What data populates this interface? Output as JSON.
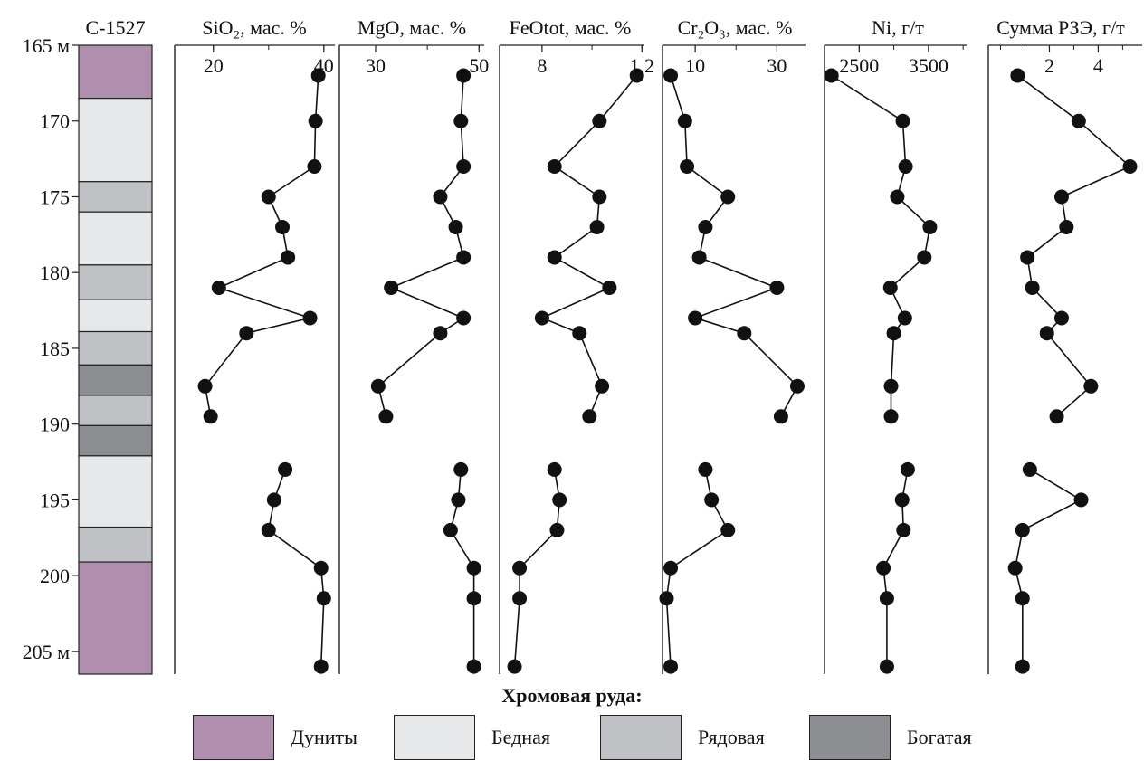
{
  "chart_data": {
    "type": "line",
    "well": "С-1527",
    "depth_top_label": "165 м",
    "depth_bottom_label": "205 м",
    "depth_ticks": [
      "165 м",
      "170",
      "175",
      "180",
      "185",
      "190",
      "195",
      "200",
      "205 м"
    ],
    "depth_range": [
      165,
      206.5
    ],
    "depth": [
      167,
      170,
      173,
      175,
      177,
      179,
      181,
      183,
      184,
      187.5,
      189.5,
      193,
      195,
      197,
      199.5,
      201.5,
      206
    ],
    "lithology": [
      {
        "top": 165,
        "bottom": 168.5,
        "type": "dunite"
      },
      {
        "top": 168.5,
        "bottom": 174,
        "type": "poor"
      },
      {
        "top": 174,
        "bottom": 176,
        "type": "ordinary"
      },
      {
        "top": 176,
        "bottom": 179.5,
        "type": "poor"
      },
      {
        "top": 179.5,
        "bottom": 181.8,
        "type": "ordinary"
      },
      {
        "top": 181.8,
        "bottom": 183.9,
        "type": "poor"
      },
      {
        "top": 183.9,
        "bottom": 186.1,
        "type": "ordinary"
      },
      {
        "top": 186.1,
        "bottom": 188.1,
        "type": "rich"
      },
      {
        "top": 188.1,
        "bottom": 190.1,
        "type": "ordinary"
      },
      {
        "top": 190.1,
        "bottom": 192.1,
        "type": "rich"
      },
      {
        "top": 192.1,
        "bottom": 196.8,
        "type": "poor"
      },
      {
        "top": 196.8,
        "bottom": 199.1,
        "type": "ordinary"
      },
      {
        "top": 199.1,
        "bottom": 206.5,
        "type": "dunite"
      }
    ],
    "series": [
      {
        "name": "SiO₂, мас. %",
        "xlim": [
          13,
          42
        ],
        "ticks": [
          20,
          40
        ],
        "values": [
          39,
          38.5,
          38.3,
          30,
          32.5,
          33.5,
          21,
          37.5,
          26,
          18.5,
          19.5,
          33,
          31,
          30,
          39.5,
          40,
          39.5
        ]
      },
      {
        "name": "MgO, мас. %",
        "xlim": [
          23,
          51
        ],
        "ticks": [
          30,
          50
        ],
        "values": [
          47,
          46.5,
          47,
          42.5,
          45.5,
          47,
          33,
          47,
          42.5,
          30.5,
          32,
          46.5,
          46,
          44.5,
          49,
          49,
          49
        ]
      },
      {
        "name": "FeOtot, мас. %",
        "xlim": [
          6.3,
          12.1
        ],
        "ticks": [
          8,
          12
        ],
        "values": [
          11.8,
          10.3,
          8.5,
          10.3,
          10.2,
          8.5,
          10.7,
          8,
          9.5,
          10.4,
          9.9,
          8.5,
          8.7,
          8.6,
          7.1,
          7.1,
          6.9
        ],
        "tick_labels": [
          "8",
          "1 2"
        ]
      },
      {
        "name": "Cr₂O₃, мас. %",
        "xlim": [
          2,
          37
        ],
        "ticks": [
          10,
          30
        ],
        "values": [
          4,
          7.5,
          8,
          18,
          12.5,
          11,
          30,
          10,
          22,
          35,
          31,
          12.5,
          14,
          18,
          4,
          3,
          4
        ]
      },
      {
        "name": "Ni, г/т",
        "xlim": [
          2000,
          4050
        ],
        "ticks": [
          2500,
          3500
        ],
        "values": [
          2100,
          3130,
          3170,
          3050,
          3520,
          3440,
          2950,
          3160,
          3000,
          2960,
          2960,
          3200,
          3120,
          3140,
          2850,
          2900,
          2900
        ]
      },
      {
        "name": "Сумма РЗЭ, г/т",
        "xlim": [
          -0.5,
          5.8
        ],
        "ticks": [
          2,
          4
        ],
        "values": [
          0.7,
          3.2,
          5.3,
          2.5,
          2.7,
          1.1,
          1.3,
          2.5,
          1.9,
          3.7,
          2.3,
          1.2,
          3.3,
          0.9,
          0.6,
          0.9,
          0.9
        ]
      }
    ],
    "gaps_after_depth": [
      189.5
    ],
    "legend_title": "Хромовая руда:",
    "legend": [
      {
        "type": "dunite",
        "label": "Дуниты",
        "color": "#b08fae"
      },
      {
        "type": "poor",
        "label": "Бедная",
        "color": "#e7e8ea"
      },
      {
        "type": "ordinary",
        "label": "Рядовая",
        "color": "#bfc1c4"
      },
      {
        "type": "rich",
        "label": "Богатая",
        "color": "#8c8e91"
      }
    ]
  }
}
